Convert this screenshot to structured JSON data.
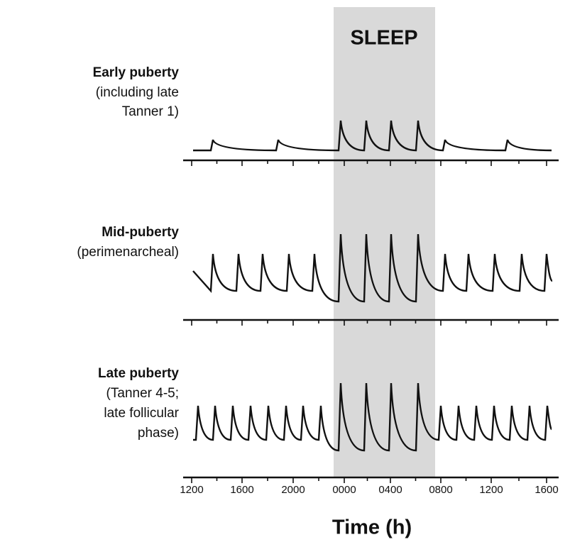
{
  "sleep_label": "SLEEP",
  "panels": [
    {
      "title": "Early puberty",
      "lines": [
        "(including late",
        "Tanner 1)"
      ]
    },
    {
      "title": "Mid-puberty",
      "lines": [
        "(perimenarcheal)"
      ]
    },
    {
      "title": "Late puberty",
      "lines": [
        "(Tanner 4-5;",
        "late follicular",
        "phase)"
      ]
    }
  ],
  "x_axis": {
    "ticks": [
      "1200",
      "1600",
      "2000",
      "0000",
      "0400",
      "0800",
      "1200",
      "1600"
    ],
    "label": "Time (h)"
  }
}
